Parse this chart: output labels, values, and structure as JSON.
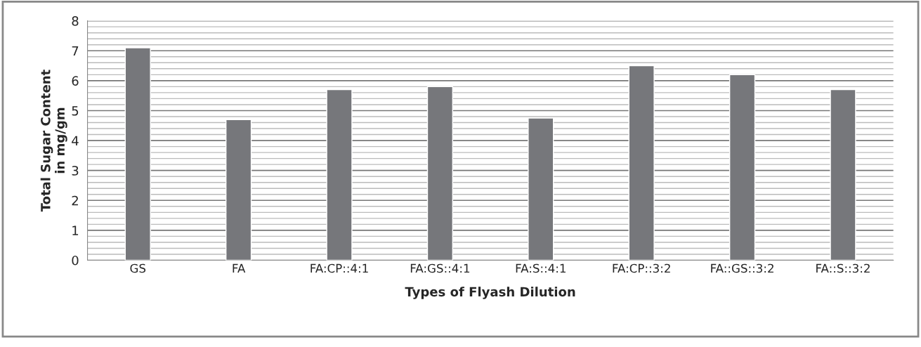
{
  "chart_data": {
    "type": "bar",
    "xlabel": "Types of Flyash Dilution",
    "ylabel": "Total Sugar Content\nin mg/gm",
    "categories": [
      "GS",
      "FA",
      "FA:CP::4:1",
      "FA:GS::4:1",
      "FA:S::4:1",
      "FA:CP::3:2",
      "FA::GS::3:2",
      "FA::S::3:2"
    ],
    "values": [
      7.1,
      4.7,
      5.7,
      5.8,
      4.75,
      6.5,
      6.2,
      5.7
    ],
    "color": "#76777b",
    "ylim": [
      0,
      8
    ],
    "yticks": [
      0,
      1,
      2,
      3,
      4,
      5,
      6,
      7,
      8
    ],
    "grid": "y",
    "legend": false
  }
}
